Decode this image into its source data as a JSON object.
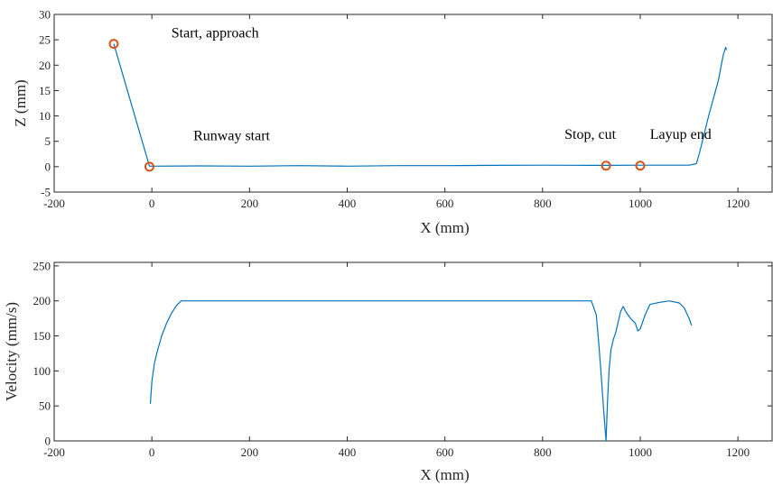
{
  "chart_data": [
    {
      "type": "line",
      "xlabel": "X (mm)",
      "ylabel": "Z (mm)",
      "xlim": [
        -200,
        1270
      ],
      "ylim": [
        -5,
        30
      ],
      "xticks": [
        -200,
        0,
        200,
        400,
        600,
        800,
        1000,
        1200
      ],
      "yticks": [
        -5,
        0,
        5,
        10,
        15,
        20,
        25,
        30
      ],
      "grid": false,
      "series": [
        {
          "color": "#0072BD",
          "x": [
            -78,
            -5,
            100,
            200,
            300,
            400,
            500,
            600,
            700,
            800,
            900,
            930,
            1000,
            1100,
            1115,
            1122,
            1140,
            1160,
            1170,
            1175,
            1177
          ],
          "y": [
            24.2,
            0.1,
            0.15,
            0.1,
            0.2,
            0.1,
            0.2,
            0.2,
            0.25,
            0.3,
            0.25,
            0.25,
            0.3,
            0.3,
            0.6,
            3,
            10,
            17,
            22,
            23.5,
            23
          ]
        }
      ],
      "markers": {
        "color": "#D95319",
        "x": [
          -78,
          -5,
          930,
          1000
        ],
        "y": [
          24.2,
          0,
          0.2,
          0.2
        ]
      },
      "annotations": [
        {
          "text": "Start, approach",
          "x": 40,
          "y": 25.5
        },
        {
          "text": "Runway start",
          "x": 85,
          "y": 5.2
        },
        {
          "text": "Stop, cut",
          "x": 845,
          "y": 5.5
        },
        {
          "text": "Layup end",
          "x": 1020,
          "y": 5.5
        }
      ]
    },
    {
      "type": "line",
      "xlabel": "X (mm)",
      "ylabel": "Velocity (mm/s)",
      "xlim": [
        -200,
        1270
      ],
      "ylim": [
        0,
        255
      ],
      "xticks": [
        -200,
        0,
        200,
        400,
        600,
        800,
        1000,
        1200
      ],
      "yticks": [
        0,
        50,
        100,
        150,
        200,
        250
      ],
      "grid": false,
      "series": [
        {
          "color": "#0072BD",
          "x": [
            -3,
            0,
            5,
            10,
            20,
            30,
            40,
            50,
            60,
            100,
            200,
            300,
            400,
            500,
            600,
            700,
            800,
            880,
            900,
            910,
            915,
            920,
            925,
            930,
            933,
            936,
            940,
            945,
            950,
            960,
            965,
            970,
            980,
            990,
            995,
            1000,
            1010,
            1020,
            1040,
            1060,
            1080,
            1090,
            1100,
            1105
          ],
          "y": [
            53,
            85,
            110,
            125,
            150,
            168,
            182,
            193,
            200,
            200,
            200,
            200,
            200,
            200,
            200,
            200,
            200,
            200,
            200,
            180,
            140,
            95,
            45,
            0,
            55,
            100,
            130,
            145,
            155,
            185,
            192,
            185,
            175,
            168,
            157,
            160,
            180,
            195,
            198,
            200,
            197,
            190,
            175,
            165
          ]
        }
      ]
    }
  ]
}
